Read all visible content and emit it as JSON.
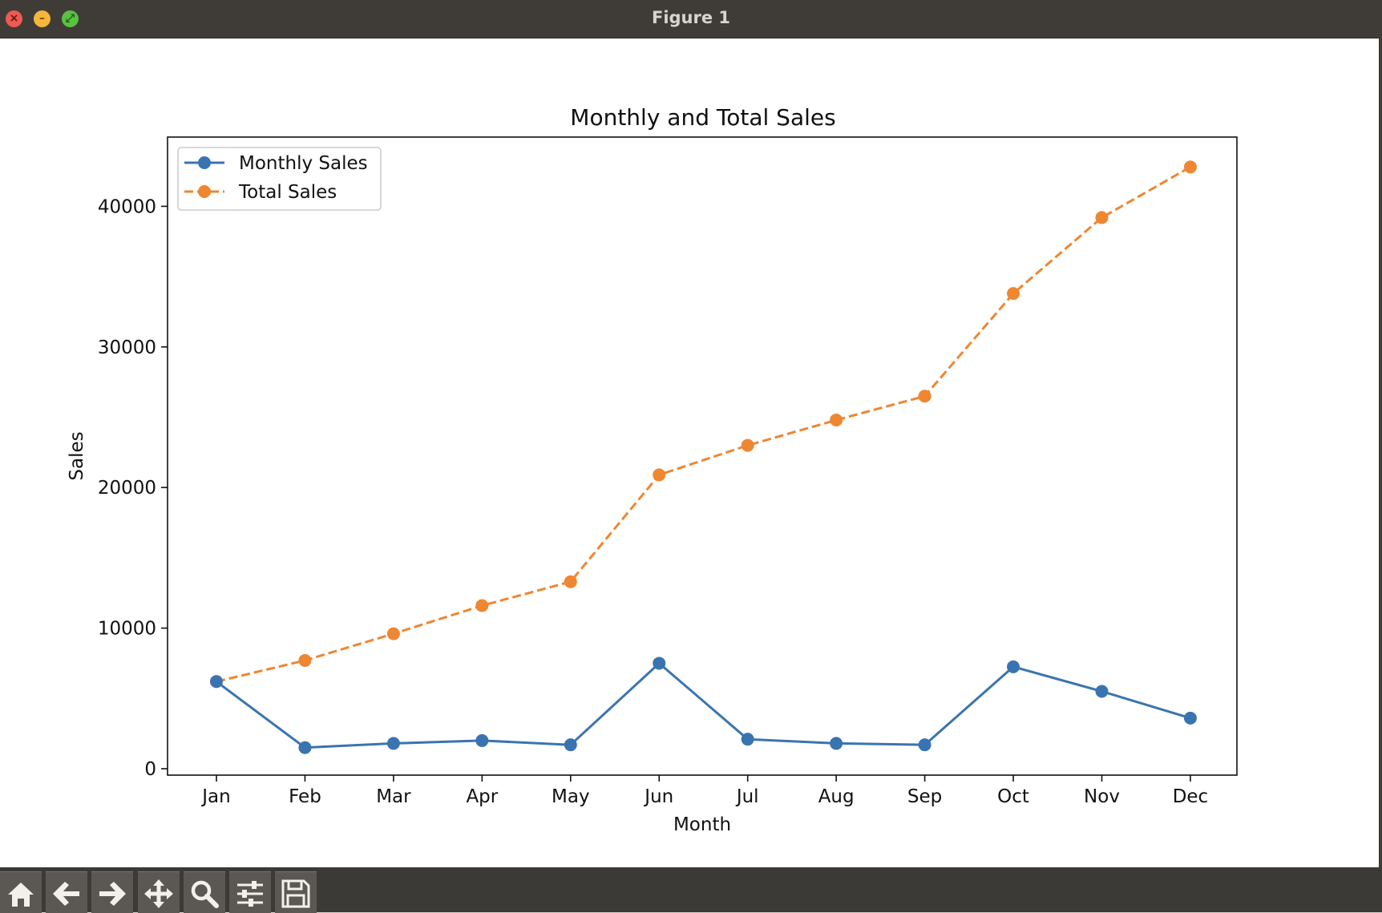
{
  "window": {
    "title": "Figure 1"
  },
  "toolbar": {
    "buttons": [
      {
        "icon": "home-icon"
      },
      {
        "icon": "back-arrow-icon"
      },
      {
        "icon": "forward-arrow-icon"
      },
      {
        "icon": "pan-icon"
      },
      {
        "icon": "zoom-icon"
      },
      {
        "icon": "configure-subplots-icon"
      },
      {
        "icon": "save-icon"
      }
    ]
  },
  "colors": {
    "monthly": "#3a74b0",
    "total": "#ef8631"
  },
  "chart_data": {
    "type": "line",
    "title": "Monthly and Total Sales",
    "xlabel": "Month",
    "ylabel": "Sales",
    "categories": [
      "Jan",
      "Feb",
      "Mar",
      "Apr",
      "May",
      "Jun",
      "Jul",
      "Aug",
      "Sep",
      "Oct",
      "Nov",
      "Dec"
    ],
    "yticks": [
      0,
      10000,
      20000,
      30000,
      40000
    ],
    "ytick_labels": [
      "0",
      "10000",
      "20000",
      "30000",
      "40000"
    ],
    "ylim": [
      -500,
      45000
    ],
    "grid": false,
    "legend_position": "upper-left",
    "series": [
      {
        "name": "Monthly Sales",
        "style": "solid",
        "color": "#3a74b0",
        "values": [
          6200,
          1500,
          1800,
          2000,
          1700,
          7500,
          2100,
          1800,
          1700,
          7250,
          5500,
          3600
        ]
      },
      {
        "name": "Total Sales",
        "style": "dashed",
        "color": "#ef8631",
        "values": [
          6200,
          7700,
          9600,
          11600,
          13300,
          20900,
          23000,
          24800,
          26500,
          33800,
          39200,
          42800
        ]
      }
    ]
  }
}
